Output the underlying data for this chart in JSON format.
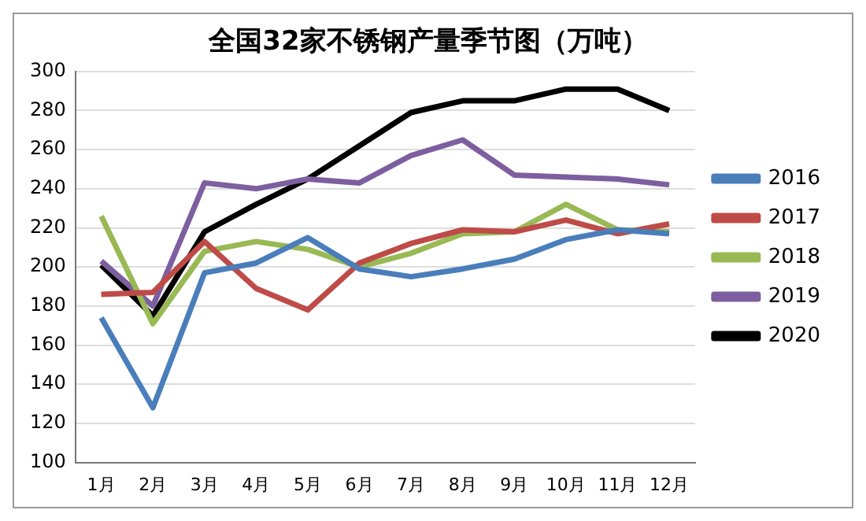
{
  "chart_data": {
    "type": "line",
    "title": "全国32家不锈钢产量季节图（万吨）",
    "categories": [
      "1月",
      "2月",
      "3月",
      "4月",
      "5月",
      "6月",
      "7月",
      "8月",
      "9月",
      "10月",
      "11月",
      "12月"
    ],
    "series": [
      {
        "name": "2016",
        "color": "#4a7ebb",
        "values": [
          174,
          128,
          197,
          202,
          215,
          199,
          195,
          199,
          204,
          214,
          219,
          217
        ]
      },
      {
        "name": "2017",
        "color": "#be4b48",
        "values": [
          186,
          187,
          213,
          189,
          178,
          202,
          212,
          219,
          218,
          224,
          217,
          222
        ]
      },
      {
        "name": "2018",
        "color": "#98b954",
        "values": [
          226,
          171,
          208,
          213,
          209,
          200,
          207,
          217,
          218,
          232,
          219,
          218
        ]
      },
      {
        "name": "2019",
        "color": "#7d5fa0",
        "values": [
          203,
          180,
          243,
          240,
          245,
          243,
          257,
          265,
          247,
          246,
          245,
          242
        ]
      },
      {
        "name": "2020",
        "color": "#000000",
        "values": [
          201,
          175,
          218,
          232,
          245,
          262,
          279,
          285,
          285,
          291,
          291,
          280
        ]
      }
    ],
    "ylim": [
      100,
      300
    ],
    "yticks": [
      100,
      120,
      140,
      160,
      180,
      200,
      220,
      240,
      260,
      280,
      300
    ],
    "grid": "y",
    "legend": "right",
    "marker": "none",
    "line_style": "solid"
  }
}
